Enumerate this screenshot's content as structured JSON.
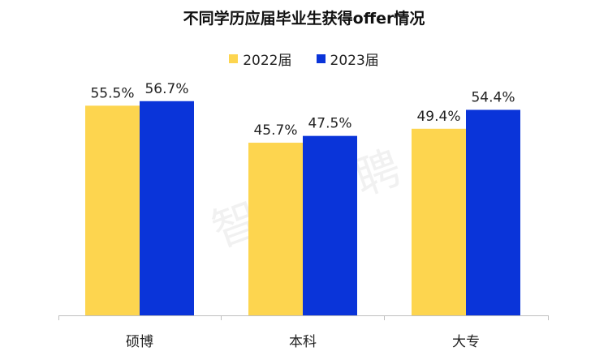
{
  "watermark": "智联招聘",
  "chart_data": {
    "type": "bar",
    "title": "不同学历应届毕业生获得offer情况",
    "categories": [
      "硕博",
      "本科",
      "大专"
    ],
    "series": [
      {
        "name": "2022届",
        "color": "#FDD54F",
        "values": [
          55.5,
          45.7,
          49.4
        ],
        "labels": [
          "55.5%",
          "45.7%",
          "49.4%"
        ]
      },
      {
        "name": "2023届",
        "color": "#0A34D9",
        "values": [
          56.7,
          47.5,
          54.4
        ],
        "labels": [
          "56.7%",
          "47.5%",
          "54.4%"
        ]
      }
    ],
    "ylim": [
      0,
      60
    ],
    "xlabel": "",
    "ylabel": "",
    "grid": false,
    "legend": "top-center"
  }
}
